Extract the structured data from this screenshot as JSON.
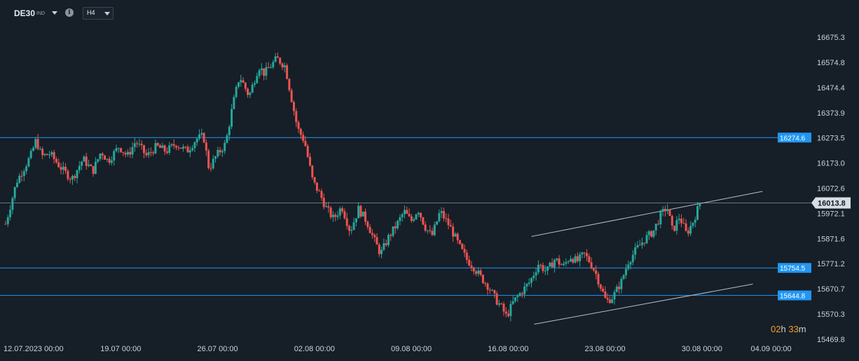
{
  "toolbar": {
    "symbol": "DE30",
    "symbol_type": "IND",
    "info_icon": "i",
    "timeframe": "H4"
  },
  "countdown": {
    "hours": "02",
    "h": "h",
    "minutes": "33",
    "m": "m"
  },
  "colors": {
    "bull": "#26a69a",
    "bear": "#ef5350",
    "level": "#2196f3",
    "trend": "#aebfd1",
    "price": "#8a96a3"
  },
  "chart_data": {
    "type": "candlestick",
    "y_ticks": [
      "16675.3",
      "16574.8",
      "16474.4",
      "16373.9",
      "16273.5",
      "16173.0",
      "16072.6",
      "15972.1",
      "15871.6",
      "15771.2",
      "15670.7",
      "15570.3",
      "15469.8"
    ],
    "y_range": [
      15469.8,
      16675.3
    ],
    "x_ticks": [
      {
        "label": "12.07.2023  00:00",
        "day": 0
      },
      {
        "label": "19.07  00:00",
        "day": 7
      },
      {
        "label": "26.07  00:00",
        "day": 14
      },
      {
        "label": "02.08  00:00",
        "day": 21
      },
      {
        "label": "09.08  00:00",
        "day": 28
      },
      {
        "label": "16.08  00:00",
        "day": 35
      },
      {
        "label": "23.08  00:00",
        "day": 42
      },
      {
        "label": "30.08  00:00",
        "day": 49
      },
      {
        "label": "04.09  00:00",
        "day": 54
      }
    ],
    "levels": [
      {
        "value": 16274.6,
        "label": "16274.6"
      },
      {
        "value": 15754.5,
        "label": "15754.5"
      },
      {
        "value": 15644.8,
        "label": "15644.8"
      }
    ],
    "current_price": {
      "value": 16013.8,
      "label": "16013.8"
    },
    "channel": [
      {
        "from": {
          "day": 38.0,
          "price": 15880
        },
        "to": {
          "day": 54.7,
          "price": 16060
        }
      },
      {
        "from": {
          "day": 38.2,
          "price": 15530
        },
        "to": {
          "day": 54.0,
          "price": 15690
        }
      }
    ],
    "path": [
      [
        0,
        15930
      ],
      [
        0.8,
        16100
      ],
      [
        1.3,
        16150
      ],
      [
        1.8,
        16200
      ],
      [
        2.2,
        16265
      ],
      [
        2.6,
        16200
      ],
      [
        3.2,
        16210
      ],
      [
        4.2,
        16140
      ],
      [
        4.8,
        16110
      ],
      [
        5.6,
        16190
      ],
      [
        6.3,
        16140
      ],
      [
        6.9,
        16220
      ],
      [
        7.4,
        16180
      ],
      [
        8.2,
        16240
      ],
      [
        8.8,
        16200
      ],
      [
        9.4,
        16260
      ],
      [
        10.2,
        16200
      ],
      [
        10.9,
        16240
      ],
      [
        11.6,
        16220
      ],
      [
        12.3,
        16250
      ],
      [
        13.1,
        16220
      ],
      [
        13.8,
        16270
      ],
      [
        14.3,
        16280
      ],
      [
        14.7,
        16150
      ],
      [
        15.2,
        16200
      ],
      [
        15.9,
        16250
      ],
      [
        16.4,
        16400
      ],
      [
        16.9,
        16520
      ],
      [
        17.6,
        16440
      ],
      [
        18.3,
        16560
      ],
      [
        18.7,
        16530
      ],
      [
        19.3,
        16570
      ],
      [
        19.6,
        16590
      ],
      [
        20.2,
        16560
      ],
      [
        20.7,
        16420
      ],
      [
        21.1,
        16310
      ],
      [
        21.6,
        16260
      ],
      [
        22.2,
        16100
      ],
      [
        22.7,
        16050
      ],
      [
        23.2,
        15990
      ],
      [
        23.7,
        15950
      ],
      [
        24.3,
        16000
      ],
      [
        24.9,
        15900
      ],
      [
        25.5,
        15990
      ],
      [
        26.1,
        15940
      ],
      [
        26.6,
        15870
      ],
      [
        27.1,
        15810
      ],
      [
        27.7,
        15880
      ],
      [
        28.3,
        15930
      ],
      [
        28.8,
        15980
      ],
      [
        29.3,
        15940
      ],
      [
        29.8,
        15990
      ],
      [
        30.3,
        15920
      ],
      [
        30.8,
        15880
      ],
      [
        31.4,
        15980
      ],
      [
        32.1,
        15920
      ],
      [
        32.8,
        15840
      ],
      [
        33.3,
        15790
      ],
      [
        33.8,
        15760
      ],
      [
        34.3,
        15720
      ],
      [
        34.9,
        15680
      ],
      [
        35.4,
        15630
      ],
      [
        35.8,
        15600
      ],
      [
        36.2,
        15560
      ],
      [
        36.7,
        15620
      ],
      [
        37.3,
        15660
      ],
      [
        37.9,
        15700
      ],
      [
        38.5,
        15770
      ],
      [
        39.1,
        15740
      ],
      [
        39.7,
        15790
      ],
      [
        40.3,
        15760
      ],
      [
        40.8,
        15800
      ],
      [
        41.3,
        15780
      ],
      [
        41.8,
        15810
      ],
      [
        42.2,
        15780
      ],
      [
        42.6,
        15740
      ],
      [
        43.0,
        15680
      ],
      [
        43.4,
        15620
      ],
      [
        43.9,
        15640
      ],
      [
        44.5,
        15700
      ],
      [
        45.0,
        15780
      ],
      [
        45.6,
        15830
      ],
      [
        46.2,
        15870
      ],
      [
        46.8,
        15900
      ],
      [
        47.3,
        15960
      ],
      [
        47.8,
        16000
      ],
      [
        48.2,
        15900
      ],
      [
        48.7,
        15960
      ],
      [
        49.2,
        15890
      ],
      [
        49.6,
        15930
      ],
      [
        50.2,
        16015
      ]
    ]
  }
}
